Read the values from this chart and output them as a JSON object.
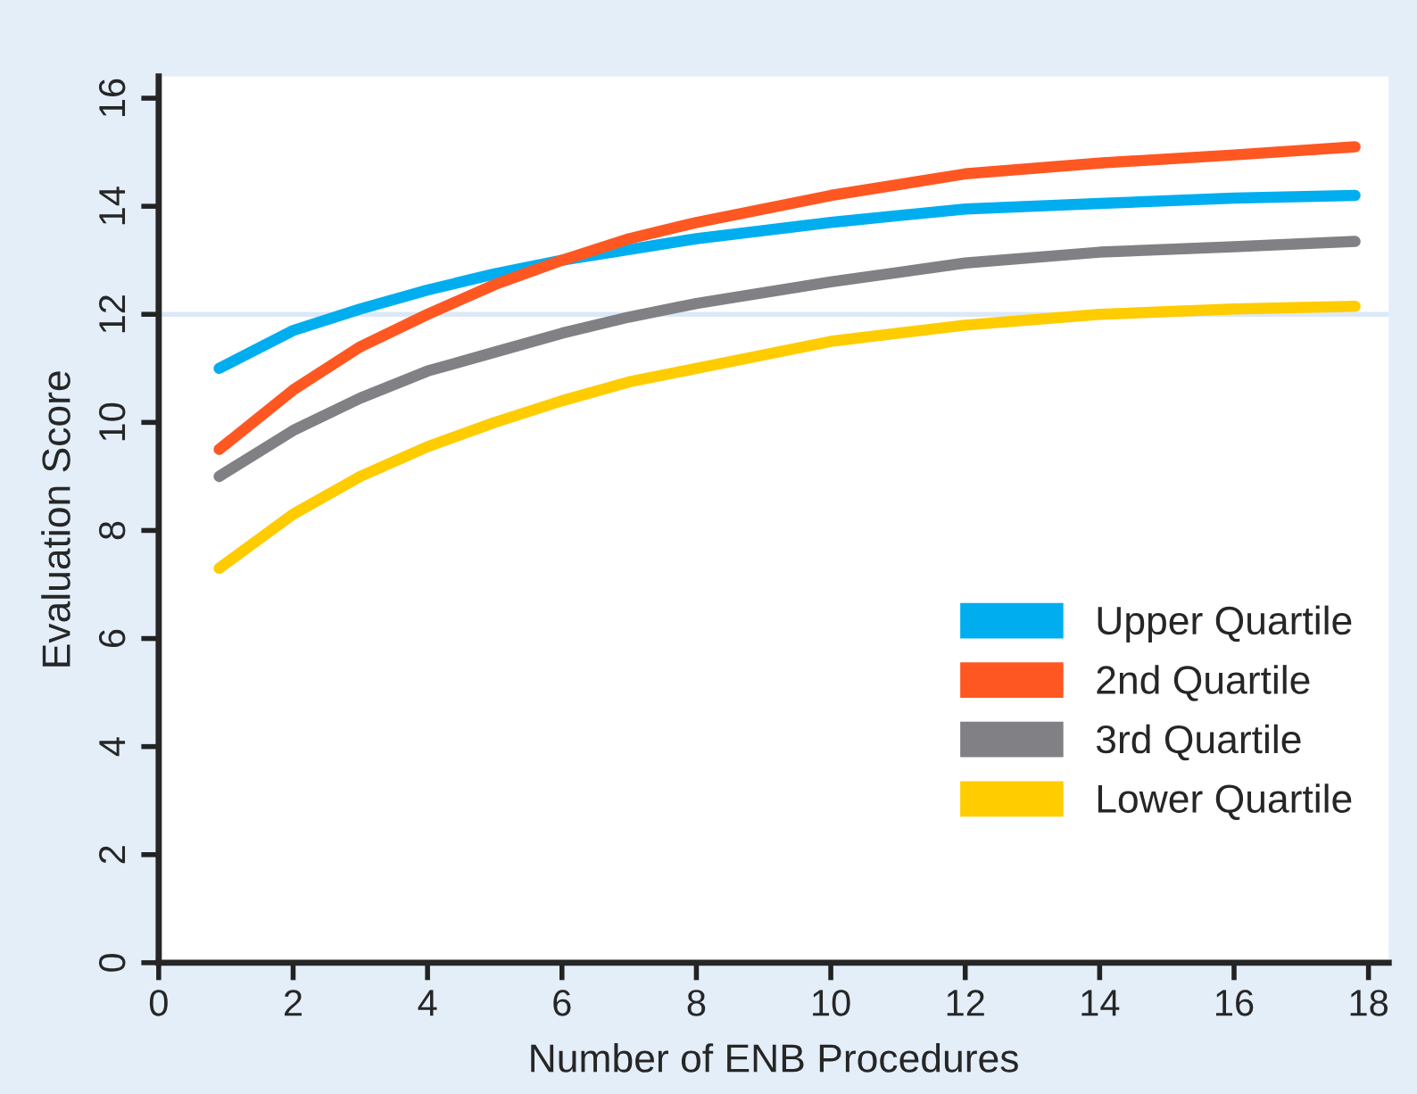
{
  "chart_data": {
    "type": "line",
    "xlabel": "Number of ENB Procedures",
    "ylabel": "Evaluation Score",
    "x": [
      0.9,
      2,
      3,
      4,
      5,
      6,
      7,
      8,
      10,
      12,
      14,
      16,
      17.8
    ],
    "series": [
      {
        "name": "Upper Quartile",
        "color": "#00aeef",
        "values": [
          11.0,
          11.7,
          12.1,
          12.45,
          12.75,
          13.0,
          13.2,
          13.4,
          13.7,
          13.95,
          14.05,
          14.15,
          14.2
        ]
      },
      {
        "name": "2nd Quartile",
        "color": "#ff5722",
        "values": [
          9.5,
          10.6,
          11.4,
          12.0,
          12.55,
          13.0,
          13.4,
          13.7,
          14.2,
          14.6,
          14.8,
          14.95,
          15.1
        ]
      },
      {
        "name": "3rd Quartile",
        "color": "#808085",
        "values": [
          9.0,
          9.85,
          10.45,
          10.95,
          11.3,
          11.65,
          11.95,
          12.2,
          12.6,
          12.95,
          13.15,
          13.25,
          13.35
        ]
      },
      {
        "name": "Lower Quartile",
        "color": "#ffcc00",
        "values": [
          7.3,
          8.3,
          9.0,
          9.55,
          10.0,
          10.4,
          10.75,
          11.0,
          11.5,
          11.8,
          12.0,
          12.1,
          12.15
        ]
      }
    ],
    "xlim": [
      0,
      18.3
    ],
    "xticks": [
      0,
      2,
      4,
      6,
      8,
      10,
      12,
      14,
      16,
      18
    ],
    "ylim": [
      0,
      16.4
    ],
    "yticks": [
      0,
      2,
      4,
      6,
      8,
      10,
      12,
      14,
      16
    ],
    "ref_lines": [
      {
        "axis": "y",
        "value": 12,
        "color": "#dbe9f7"
      }
    ],
    "legend": "bottom right",
    "grid": false,
    "marker": "none",
    "line_style": "solid"
  }
}
